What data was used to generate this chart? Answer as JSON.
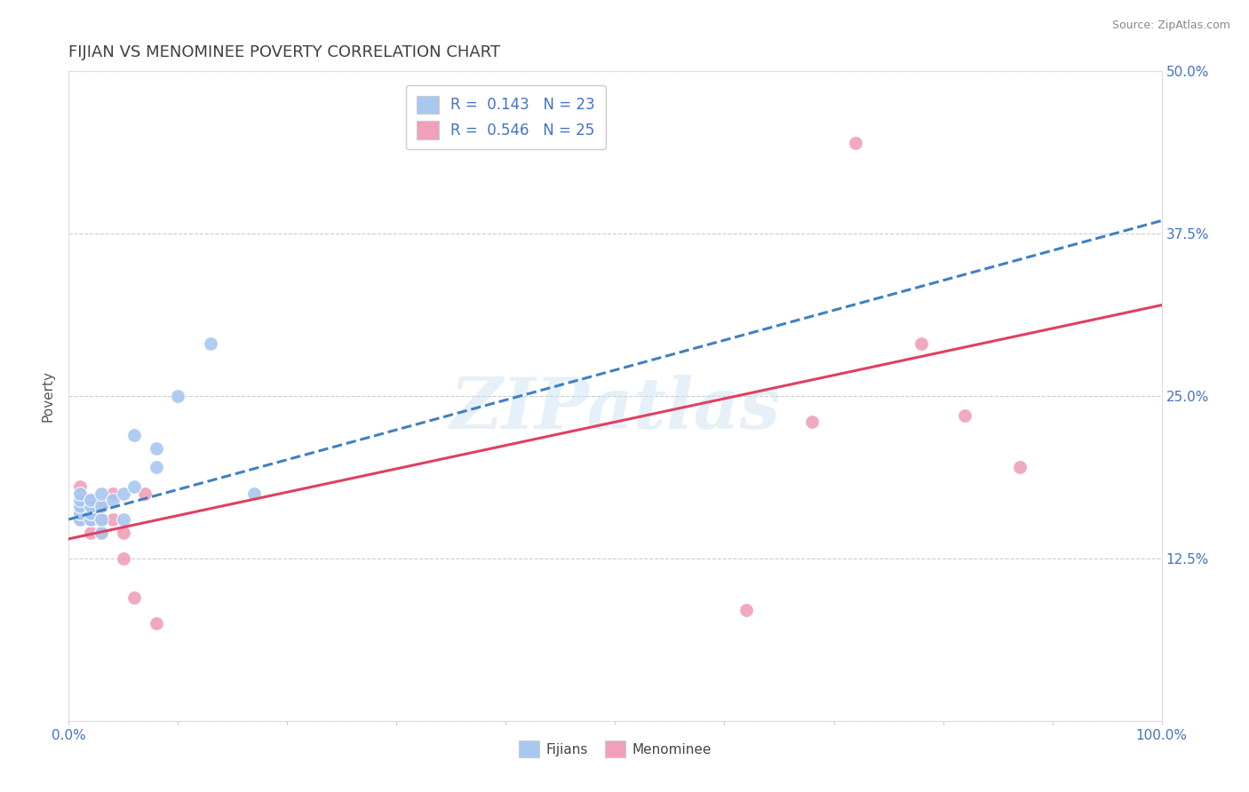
{
  "title": "FIJIAN VS MENOMINEE POVERTY CORRELATION CHART",
  "source": "Source: ZipAtlas.com",
  "ylabel": "Poverty",
  "xlim": [
    0,
    1.0
  ],
  "ylim": [
    0,
    0.5
  ],
  "xticks": [
    0.0,
    0.1,
    0.2,
    0.3,
    0.4,
    0.5,
    0.6,
    0.7,
    0.8,
    0.9,
    1.0
  ],
  "xticklabels": [
    "0.0%",
    "",
    "",
    "",
    "",
    "",
    "",
    "",
    "",
    "",
    "100.0%"
  ],
  "yticks": [
    0.0,
    0.125,
    0.25,
    0.375,
    0.5
  ],
  "yticklabels": [
    "",
    "12.5%",
    "25.0%",
    "37.5%",
    "50.0%"
  ],
  "fijian_R": "0.143",
  "fijian_N": "23",
  "menominee_R": "0.546",
  "menominee_N": "25",
  "fijian_color": "#a8c8f0",
  "menominee_color": "#f0a0b8",
  "fijian_line_color": "#4080c0",
  "menominee_line_color": "#e04060",
  "watermark": "ZIPatlas",
  "fijian_x": [
    0.01,
    0.01,
    0.01,
    0.01,
    0.01,
    0.02,
    0.02,
    0.02,
    0.02,
    0.03,
    0.03,
    0.03,
    0.03,
    0.04,
    0.05,
    0.05,
    0.06,
    0.06,
    0.08,
    0.08,
    0.1,
    0.13,
    0.17
  ],
  "fijian_y": [
    0.155,
    0.16,
    0.165,
    0.17,
    0.175,
    0.155,
    0.16,
    0.165,
    0.17,
    0.145,
    0.155,
    0.165,
    0.175,
    0.17,
    0.155,
    0.175,
    0.18,
    0.22,
    0.195,
    0.21,
    0.25,
    0.29,
    0.175
  ],
  "menominee_x": [
    0.01,
    0.01,
    0.01,
    0.01,
    0.01,
    0.02,
    0.02,
    0.02,
    0.02,
    0.03,
    0.03,
    0.03,
    0.04,
    0.04,
    0.05,
    0.05,
    0.06,
    0.07,
    0.08,
    0.62,
    0.68,
    0.72,
    0.78,
    0.82,
    0.87
  ],
  "menominee_y": [
    0.155,
    0.16,
    0.165,
    0.175,
    0.18,
    0.145,
    0.155,
    0.165,
    0.17,
    0.145,
    0.155,
    0.165,
    0.155,
    0.175,
    0.125,
    0.145,
    0.095,
    0.175,
    0.075,
    0.085,
    0.23,
    0.445,
    0.29,
    0.235,
    0.195
  ],
  "fijian_line_x0": 0.0,
  "fijian_line_y0": 0.155,
  "fijian_line_x1": 1.0,
  "fijian_line_y1": 0.385,
  "menominee_line_x0": 0.0,
  "menominee_line_y0": 0.14,
  "menominee_line_x1": 1.0,
  "menominee_line_y1": 0.32
}
